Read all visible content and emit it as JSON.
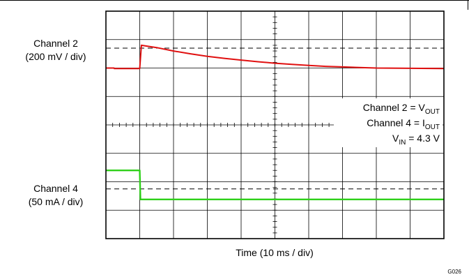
{
  "chart_data": {
    "type": "line",
    "title": "",
    "xlabel": "Time (10 ms / div)",
    "ylabel": "",
    "x_divisions": 10,
    "y_divisions": 8,
    "x_units": "div",
    "y_units": "div",
    "grid": true,
    "center_ticks": true,
    "channel_labels": [
      {
        "name": "Channel 2",
        "scale": "(200 mV / div)"
      },
      {
        "name": "Channel 4",
        "scale": "(50 mA / div)"
      }
    ],
    "reference_lines_div": [
      6.7,
      1.75
    ],
    "annotations": {
      "line1": {
        "prefix": "Channel 2 = V",
        "sub": "OUT"
      },
      "line2": {
        "prefix": "Channel 4 = I",
        "sub": "OUT"
      },
      "line3": {
        "prefix": "V",
        "sub": "IN",
        "suffix": " = 4.3 V"
      }
    },
    "series": [
      {
        "name": "Channel 2",
        "color": "#e01010",
        "points": [
          [
            0.0,
            6.0
          ],
          [
            0.24,
            6.0
          ],
          [
            0.25,
            5.98
          ],
          [
            1.0,
            5.98
          ],
          [
            1.05,
            6.8
          ],
          [
            1.5,
            6.72
          ],
          [
            2.0,
            6.6
          ],
          [
            2.5,
            6.5
          ],
          [
            3.0,
            6.41
          ],
          [
            3.5,
            6.34
          ],
          [
            4.0,
            6.28
          ],
          [
            4.5,
            6.22
          ],
          [
            5.0,
            6.17
          ],
          [
            5.5,
            6.13
          ],
          [
            6.0,
            6.09
          ],
          [
            6.5,
            6.06
          ],
          [
            7.0,
            6.04
          ],
          [
            7.5,
            6.02
          ],
          [
            8.0,
            6.0
          ],
          [
            9.0,
            5.99
          ],
          [
            10.0,
            5.98
          ]
        ]
      },
      {
        "name": "Channel 4",
        "color": "#2fd01a",
        "points": [
          [
            0.0,
            2.4
          ],
          [
            1.0,
            2.4
          ],
          [
            1.02,
            1.38
          ],
          [
            10.0,
            1.38
          ]
        ]
      }
    ]
  },
  "footer": {
    "code": "G026"
  }
}
